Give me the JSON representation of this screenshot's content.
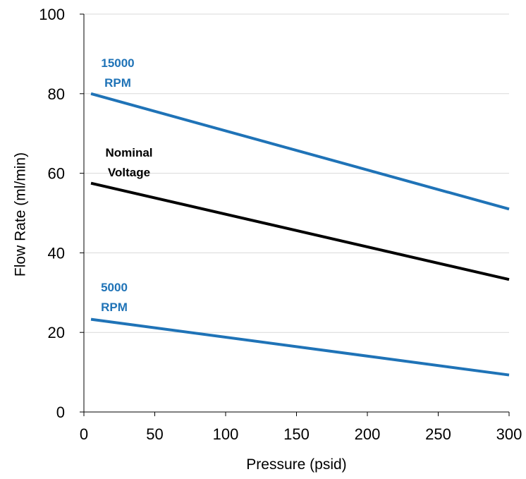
{
  "chart_data": {
    "type": "line",
    "title": "",
    "xlabel": "Pressure (psid)",
    "ylabel": "Flow Rate (ml/min)",
    "xlim": [
      0,
      300
    ],
    "ylim": [
      0,
      100
    ],
    "xticks": [
      0,
      50,
      100,
      150,
      200,
      250,
      300
    ],
    "yticks": [
      0,
      20,
      40,
      60,
      80,
      100
    ],
    "grid": "horizontal",
    "legend": "none",
    "series": [
      {
        "name_lines": [
          "15000",
          "RPM"
        ],
        "color": "#1f73b7",
        "x": [
          5,
          300
        ],
        "y": [
          80,
          51
        ]
      },
      {
        "name_lines": [
          "Nominal",
          "Voltage"
        ],
        "color": "#000000",
        "x": [
          5,
          300
        ],
        "y": [
          57.5,
          33.3
        ]
      },
      {
        "name_lines": [
          "5000",
          "RPM"
        ],
        "color": "#1f73b7",
        "x": [
          5,
          300
        ],
        "y": [
          23.3,
          9.3
        ]
      }
    ]
  }
}
